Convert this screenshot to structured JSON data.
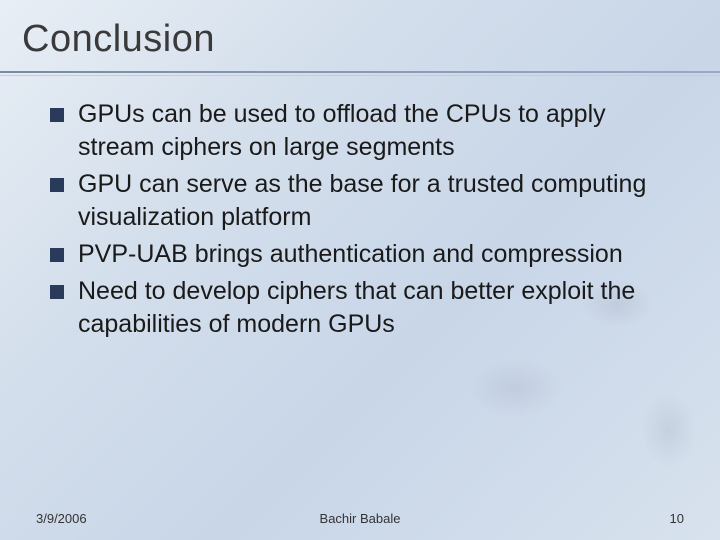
{
  "title": "Conclusion",
  "bullets": [
    "GPUs can be used to offload the CPUs to apply stream ciphers on large segments",
    "GPU can serve as the base for a trusted computing visualization platform",
    "PVP-UAB brings authentication and compression",
    "Need to develop ciphers that can better exploit the capabilities of modern GPUs"
  ],
  "footer": {
    "date": "3/9/2006",
    "author": "Bachir Babale",
    "page": "10"
  },
  "style": {
    "title_color": "#3a3a3a",
    "title_fontsize": 38,
    "bullet_square_color": "#2a3a5a",
    "bullet_square_size": 14,
    "body_fontsize": 25,
    "body_color": "#1a1a1a",
    "rule_color": "#7a8aa5",
    "background_gradient": [
      "#e8eef5",
      "#d4dfec",
      "#c8d6e8",
      "#d8e2ee"
    ],
    "footer_fontsize": 13,
    "footer_color": "#333"
  }
}
